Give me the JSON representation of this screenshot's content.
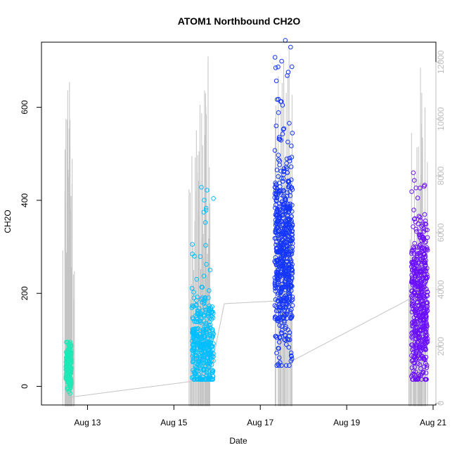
{
  "chart_data": {
    "type": "scatter",
    "title": "ATOM1 Northbound CH2O",
    "xlabel": "Date",
    "ylabel": "CH2O",
    "x_ticks": [
      "Aug 13",
      "Aug 15",
      "Aug 17",
      "Aug 19",
      "Aug 21"
    ],
    "y_ticks": [
      "0",
      "200",
      "400",
      "600"
    ],
    "y2_ticks": [
      "0",
      "2000",
      "4000",
      "6000",
      "8000",
      "10000",
      "12000"
    ],
    "xlim": [
      "2013-08-12T00:00",
      "2013-08-21T00:00"
    ],
    "ylim": [
      -40,
      740
    ],
    "y2lim": [
      -60,
      12700
    ],
    "y2_color": "#bdbdbd",
    "grid": false,
    "series": [
      {
        "color": "#1de9b6",
        "x_start": "2013-08-12T12:00",
        "x_end": "2013-08-12T15:00",
        "y_center": 45,
        "y_spread": 38,
        "y_min": -15,
        "y_max": 95,
        "points": 220
      },
      {
        "color": "#00bfff",
        "x_start": "2013-08-15T10:00",
        "x_end": "2013-08-15T22:00",
        "y_center": 90,
        "y_spread": 90,
        "y_min": 15,
        "y_max": 430,
        "points": 380
      },
      {
        "color": "#1436ff",
        "x_start": "2013-08-17T08:00",
        "x_end": "2013-08-17T18:00",
        "y_center": 280,
        "y_spread": 170,
        "y_min": 45,
        "y_max": 750,
        "points": 620
      },
      {
        "color": "#6b0fff",
        "x_start": "2013-08-20T12:00",
        "x_end": "2013-08-20T21:00",
        "y_center": 170,
        "y_spread": 150,
        "y_min": 15,
        "y_max": 470,
        "points": 480
      }
    ],
    "secondary_series": {
      "name": "",
      "color": "#c4c4c4",
      "type": "vertical-spikes",
      "spikes": [
        {
          "x": "2013-08-12T12:00",
          "y": 10000
        },
        {
          "x": "2013-08-12T13:00",
          "y": 11000
        },
        {
          "x": "2013-08-12T14:00",
          "y": 11300
        },
        {
          "x": "2013-08-12T15:30",
          "y": 8600
        },
        {
          "x": "2013-08-15T10:00",
          "y": 8700
        },
        {
          "x": "2013-08-15T12:30",
          "y": 9600
        },
        {
          "x": "2013-08-15T14:30",
          "y": 10500
        },
        {
          "x": "2013-08-15T17:00",
          "y": 11000
        },
        {
          "x": "2013-08-15T19:00",
          "y": 12200
        },
        {
          "x": "2013-08-17T10:00",
          "y": 11500
        },
        {
          "x": "2013-08-17T13:00",
          "y": 12000
        },
        {
          "x": "2013-08-17T16:00",
          "y": 12500
        },
        {
          "x": "2013-08-20T12:00",
          "y": 9500
        },
        {
          "x": "2013-08-20T15:00",
          "y": 9000
        },
        {
          "x": "2013-08-20T17:00",
          "y": 11800
        },
        {
          "x": "2013-08-20T19:30",
          "y": 10400
        }
      ],
      "connector": [
        {
          "x": "2013-08-12T12:30",
          "y": 200
        },
        {
          "x": "2013-08-15T19:30",
          "y": 850
        },
        {
          "x": "2013-08-16T04:00",
          "y": 3500
        },
        {
          "x": "2013-08-17T09:00",
          "y": 3600
        },
        {
          "x": "2013-08-17T18:00",
          "y": 1500
        },
        {
          "x": "2013-08-20T12:00",
          "y": 3700
        }
      ]
    }
  }
}
